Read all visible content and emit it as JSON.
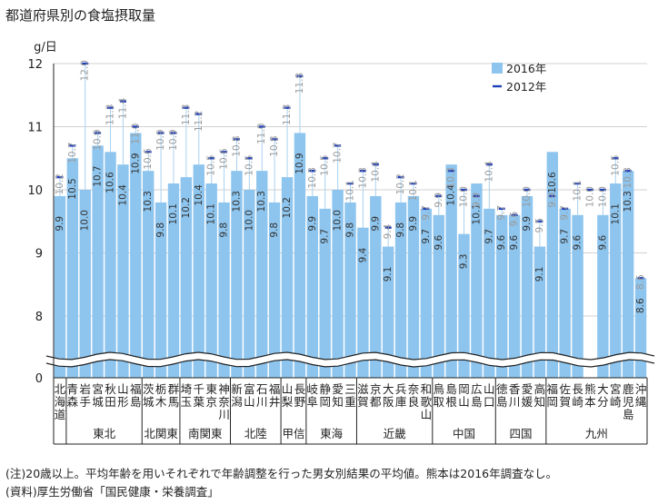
{
  "title": "都道府県別の食塩摂取量",
  "notes": [
    "(注)20歳以上。平均年齢を用いそれぞれで年齢調整を行った男女別結果の平均値。熊本は2016年調査なし。",
    "(資料)厚生労働省「国民健康・栄養調査」"
  ],
  "chart_data": {
    "type": "bar",
    "title": "都道府県別の食塩摂取量",
    "ylabel": "g/日",
    "ylim": [
      8,
      12
    ],
    "y_ticks": [
      "12",
      "11",
      "10",
      "9",
      "8"
    ],
    "y_zero_label": "0",
    "legend": {
      "position": "top-right",
      "bar_label": "2016年",
      "marker_label": "2012年"
    },
    "colors": {
      "bar": "#8ec5ee",
      "marker": "#1f3fb8",
      "label_2016": "#333333",
      "label_2012": "#9a9a9a"
    },
    "categories": [
      "北海道",
      "青森",
      "岩手",
      "宮城",
      "秋田",
      "山形",
      "福島",
      "茨城",
      "栃木",
      "群馬",
      "埼玉",
      "千葉",
      "東京",
      "神奈川",
      "新潟",
      "富山",
      "石川",
      "福井",
      "山梨",
      "長野",
      "岐阜",
      "静岡",
      "愛知",
      "三重",
      "滋賀",
      "京都",
      "大阪",
      "兵庫",
      "奈良",
      "和歌山",
      "鳥取",
      "島根",
      "岡山",
      "広島",
      "山口",
      "徳島",
      "香川",
      "愛媛",
      "高知",
      "福岡",
      "佐賀",
      "長崎",
      "熊本",
      "大分",
      "宮崎",
      "鹿児島",
      "沖縄"
    ],
    "series": [
      {
        "name": "2016年",
        "values": [
          9.9,
          10.5,
          10.0,
          10.7,
          10.6,
          10.4,
          10.9,
          10.3,
          9.8,
          10.1,
          10.2,
          10.4,
          10.1,
          9.8,
          10.3,
          10.0,
          10.3,
          9.8,
          10.2,
          10.9,
          9.9,
          9.7,
          10.0,
          9.8,
          9.4,
          9.9,
          9.1,
          9.8,
          9.9,
          9.7,
          9.6,
          10.4,
          9.3,
          10.1,
          9.7,
          9.6,
          9.6,
          9.9,
          9.1,
          10.6,
          9.7,
          9.6,
          null,
          9.6,
          10.1,
          10.3,
          8.6
        ]
      },
      {
        "name": "2012年",
        "values": [
          10.2,
          10.7,
          12.0,
          10.9,
          11.3,
          11.4,
          11.0,
          10.6,
          10.9,
          10.9,
          11.3,
          11.2,
          10.5,
          10.6,
          10.8,
          10.5,
          11.0,
          10.8,
          11.3,
          11.8,
          10.3,
          10.5,
          10.7,
          10.1,
          10.3,
          10.4,
          9.4,
          10.2,
          10.1,
          9.7,
          9.9,
          10.3,
          10.0,
          9.9,
          10.4,
          9.7,
          9.6,
          10.0,
          9.5,
          9.9,
          9.7,
          10.1,
          10.0,
          10.0,
          10.5,
          10.3,
          8.6
        ]
      }
    ],
    "regions": [
      {
        "label": "東北",
        "start": 1,
        "end": 6
      },
      {
        "label": "北関東",
        "start": 7,
        "end": 9
      },
      {
        "label": "南関東",
        "start": 10,
        "end": 13
      },
      {
        "label": "北陸",
        "start": 14,
        "end": 17
      },
      {
        "label": "甲信",
        "start": 18,
        "end": 19
      },
      {
        "label": "東海",
        "start": 20,
        "end": 23
      },
      {
        "label": "近畿",
        "start": 24,
        "end": 29
      },
      {
        "label": "中国",
        "start": 30,
        "end": 34
      },
      {
        "label": "四国",
        "start": 35,
        "end": 38
      },
      {
        "label": "九州",
        "start": 39,
        "end": 46
      }
    ]
  }
}
